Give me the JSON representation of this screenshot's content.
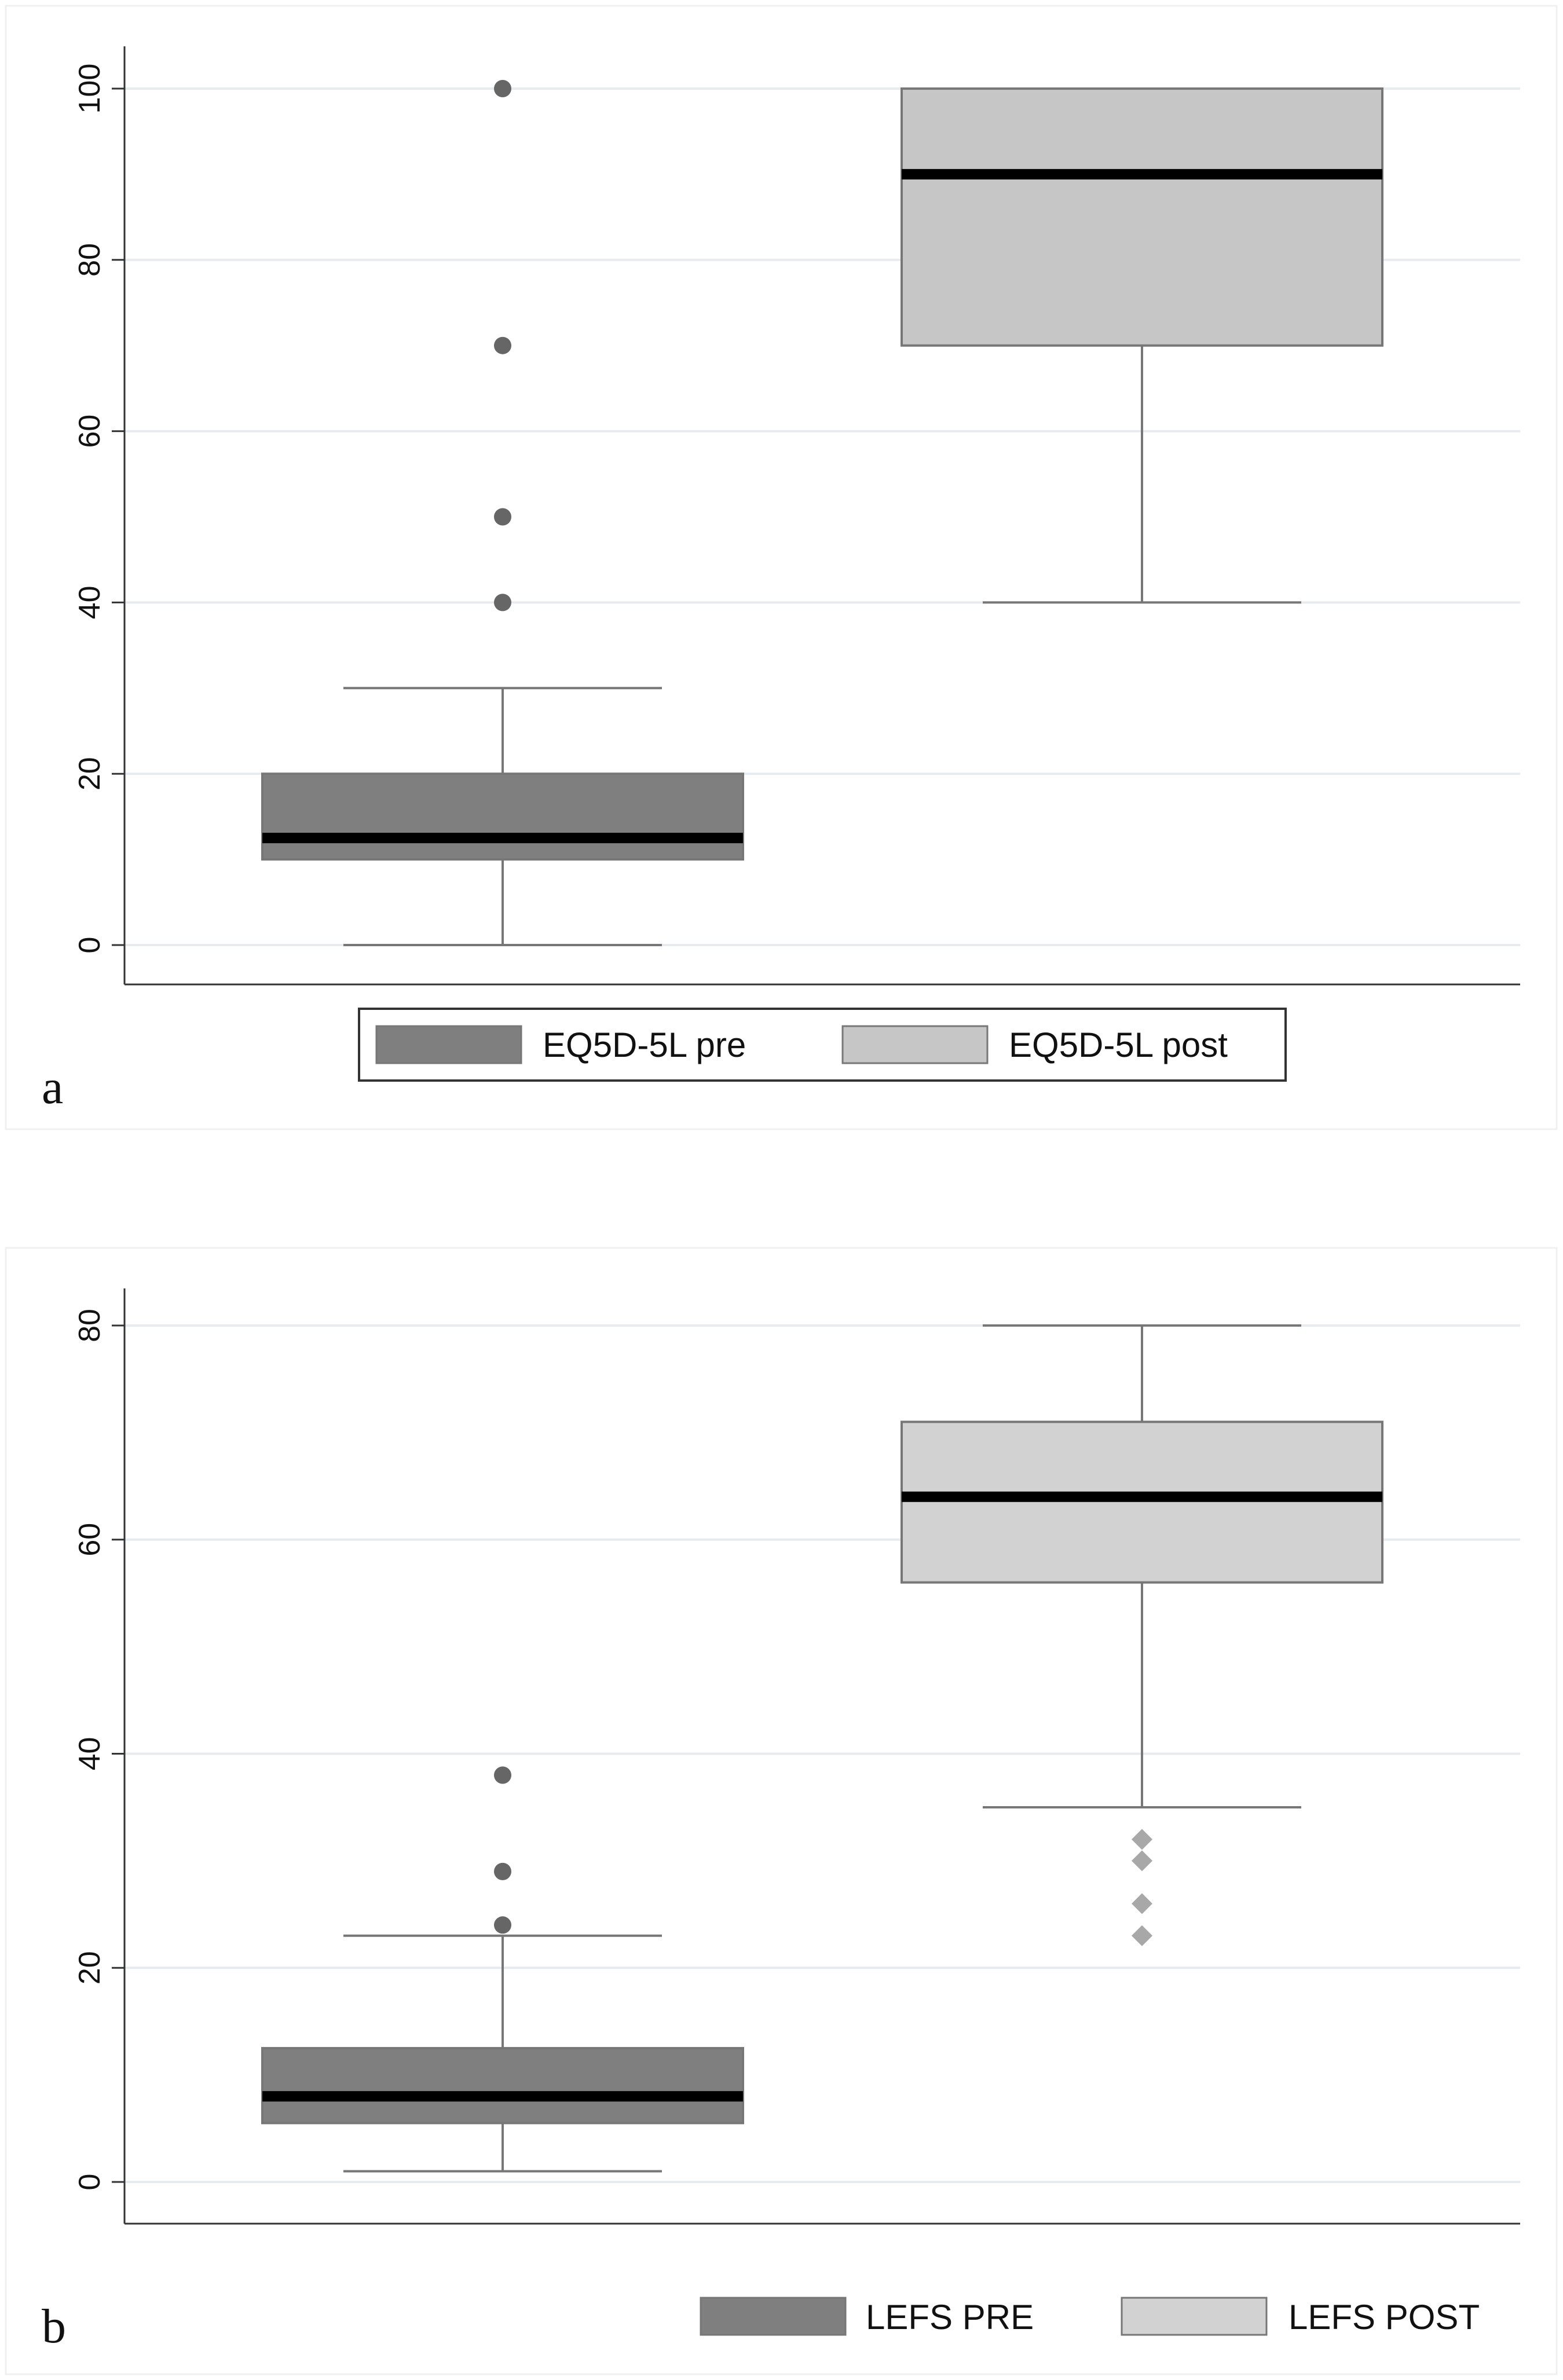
{
  "chart_data": [
    {
      "type": "box",
      "panel_label": "a",
      "ylim": [
        0,
        100
      ],
      "yticks": [
        "0",
        "20",
        "40",
        "60",
        "80",
        "100"
      ],
      "grid": true,
      "legend_boxed": true,
      "series": [
        {
          "name": "EQ5D-5L pre",
          "color": "#7f7f7f",
          "min": 0,
          "q1": 10,
          "median": 12.5,
          "q3": 20,
          "max": 30,
          "outliers": [
            40,
            50,
            70,
            100
          ],
          "outlier_shape": "circle",
          "outlier_color": "#666666"
        },
        {
          "name": "EQ5D-5L post",
          "color": "#c6c6c6",
          "min": 40,
          "q1": 70,
          "median": 90,
          "q3": 100,
          "max": 100,
          "outliers": [],
          "outlier_shape": "circle",
          "outlier_color": "#666666"
        }
      ]
    },
    {
      "type": "box",
      "panel_label": "b",
      "ylim": [
        0,
        80
      ],
      "yticks": [
        "0",
        "20",
        "40",
        "60",
        "80"
      ],
      "grid": true,
      "legend_boxed": false,
      "series": [
        {
          "name": "LEFS PRE",
          "color": "#7f7f7f",
          "min": 1,
          "q1": 5.5,
          "median": 8,
          "q3": 12.5,
          "max": 23,
          "outliers": [
            24,
            29,
            38
          ],
          "outlier_shape": "circle",
          "outlier_color": "#666666"
        },
        {
          "name": "LEFS POST",
          "color": "#d2d2d2",
          "min": 35,
          "q1": 56,
          "median": 64,
          "q3": 71,
          "max": 80,
          "outliers": [
            23,
            26,
            30,
            32
          ],
          "outlier_shape": "diamond",
          "outlier_color": "#a8a8a8"
        }
      ]
    }
  ]
}
